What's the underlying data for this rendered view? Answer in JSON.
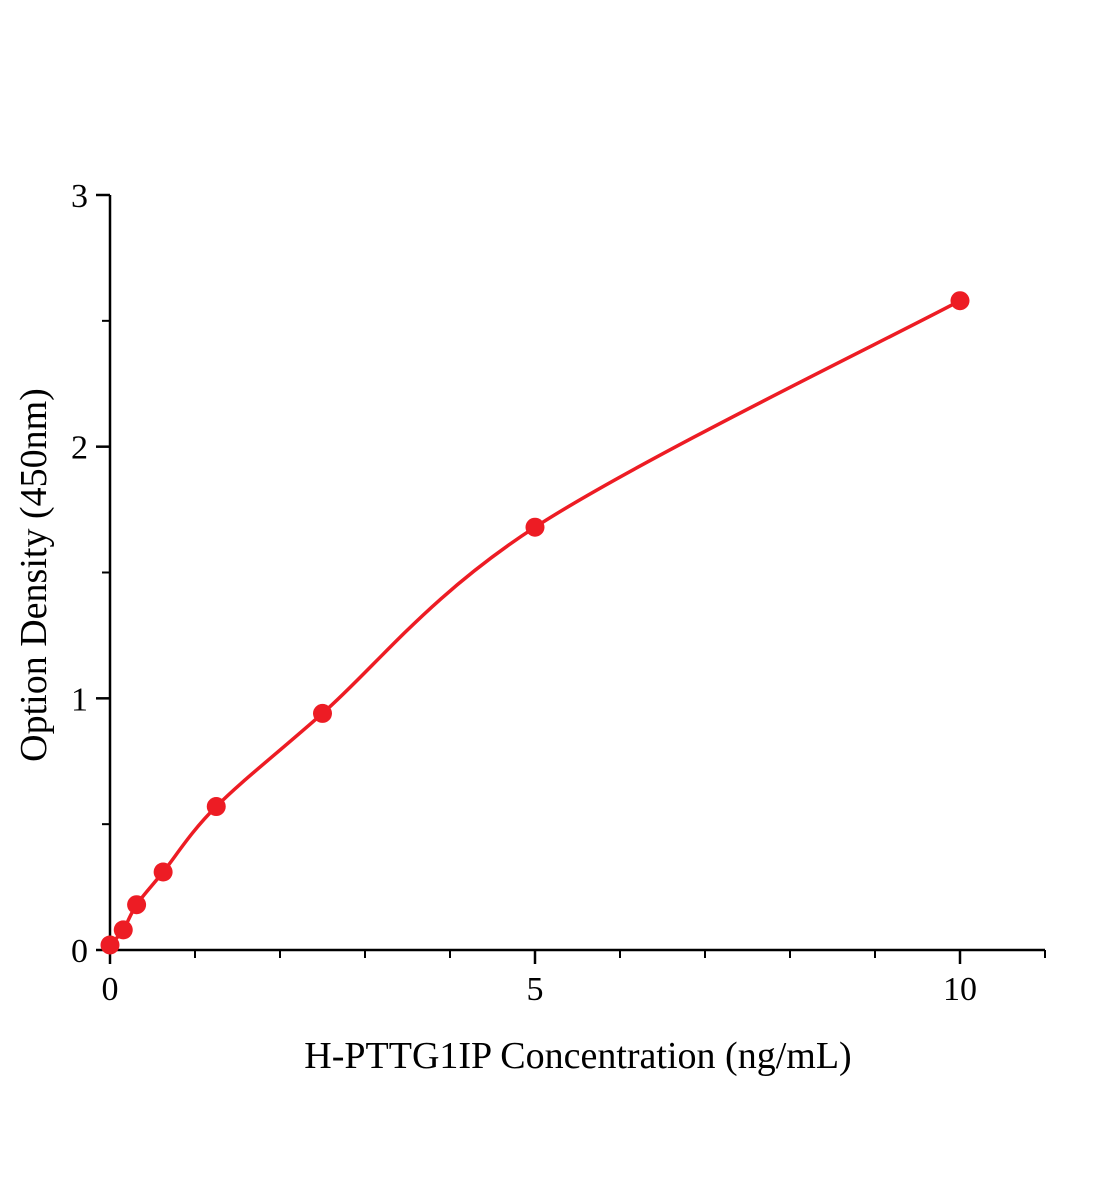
{
  "chart_data": {
    "type": "scatter",
    "title": "",
    "xlabel": "H-PTTG1IP Concentration (ng/mL)",
    "ylabel": "Option Density (450nm)",
    "x": [
      0,
      0.156,
      0.313,
      0.625,
      1.25,
      2.5,
      5,
      10
    ],
    "y": [
      0.02,
      0.08,
      0.18,
      0.31,
      0.57,
      0.94,
      1.68,
      2.58
    ],
    "xlim": [
      0,
      11
    ],
    "ylim": [
      0,
      3
    ],
    "xticks": [
      0,
      5,
      10
    ],
    "yticks": [
      0,
      1,
      2,
      3
    ],
    "x_minor_step": 1,
    "y_minor_step": 0.5,
    "line_color": "#ed1c24",
    "marker_color": "#ed1c24",
    "axis_color": "#000000",
    "grid": false,
    "legend_position": "none",
    "marker_style": "filled-circle",
    "curve_style": "smooth"
  }
}
